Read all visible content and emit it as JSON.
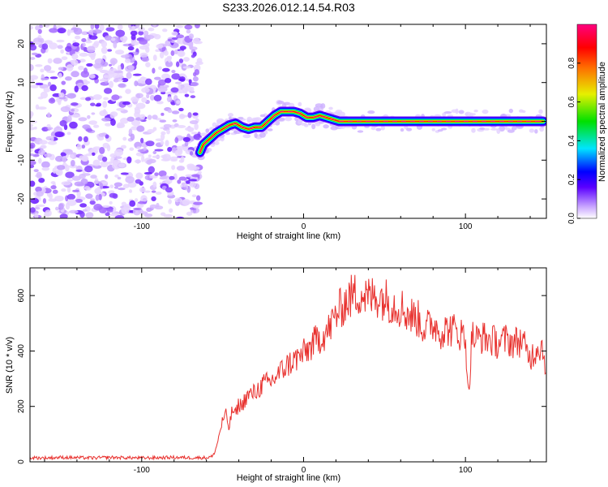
{
  "title": "S233.2026.012.14.54.R03",
  "chart_data": [
    {
      "type": "heatmap",
      "title": "S233.2026.012.14.54.R03",
      "xlabel": "Height of straight line (km)",
      "ylabel": "Frequency (Hz)",
      "xlim": [
        -169,
        150
      ],
      "ylim": [
        -25,
        25
      ],
      "x_ticks": [
        -100,
        0,
        100
      ],
      "y_ticks": [
        -20,
        -10,
        0,
        10,
        20
      ],
      "noise_region_x": [
        -169,
        -64
      ],
      "signal_trace": {
        "x": [
          -64,
          -62,
          -58,
          -54,
          -50,
          -46,
          -42,
          -38,
          -34,
          -30,
          -26,
          -22,
          -18,
          -14,
          -10,
          -6,
          -2,
          2,
          6,
          10,
          14,
          18,
          22,
          30,
          40,
          50,
          60,
          70,
          80,
          90,
          100,
          110,
          120,
          130,
          140,
          148
        ],
        "y": [
          -8,
          -6,
          -4.5,
          -3,
          -2,
          -1,
          -0.5,
          -1.5,
          -2,
          -1.5,
          -1.5,
          0,
          1.5,
          2.5,
          2.5,
          2.5,
          2,
          1,
          1,
          1.5,
          1,
          0.5,
          0,
          0,
          0,
          0,
          0,
          0,
          0,
          0,
          0,
          0,
          0,
          0,
          0,
          0
        ]
      },
      "colorbar": {
        "label": "Normalized spectral amplitude",
        "range": [
          0,
          1
        ],
        "ticks": [
          "0.0",
          "0.2",
          "0.4",
          "0.6",
          "0.8"
        ]
      }
    },
    {
      "type": "line",
      "xlabel": "Height of straight line (km)",
      "ylabel": "SNR (10 * v/v)",
      "xlim": [
        -169,
        150
      ],
      "ylim": [
        0,
        700
      ],
      "x_ticks": [
        -100,
        0,
        100
      ],
      "y_ticks": [
        0,
        200,
        400,
        600
      ],
      "series": [
        {
          "name": "SNR",
          "color": "#e8312e",
          "x": [
            -169,
            -160,
            -150,
            -140,
            -130,
            -120,
            -110,
            -100,
            -90,
            -80,
            -70,
            -60,
            -56,
            -54,
            -52,
            -50,
            -48,
            -46,
            -44,
            -42,
            -40,
            -38,
            -36,
            -34,
            -30,
            -25,
            -20,
            -15,
            -10,
            -5,
            0,
            5,
            10,
            15,
            20,
            25,
            30,
            35,
            40,
            45,
            50,
            55,
            60,
            65,
            70,
            75,
            80,
            85,
            90,
            95,
            100,
            102,
            104,
            106,
            110,
            115,
            120,
            125,
            130,
            135,
            138,
            140,
            142,
            145,
            148,
            150
          ],
          "y": [
            15,
            14,
            16,
            15,
            14,
            16,
            15,
            14,
            15,
            16,
            15,
            15,
            20,
            50,
            100,
            150,
            170,
            120,
            190,
            170,
            210,
            200,
            230,
            240,
            250,
            280,
            290,
            320,
            350,
            370,
            390,
            420,
            450,
            470,
            530,
            570,
            600,
            610,
            590,
            600,
            590,
            570,
            560,
            530,
            520,
            480,
            500,
            470,
            480,
            470,
            450,
            230,
            460,
            440,
            450,
            440,
            430,
            440,
            430,
            440,
            390,
            380,
            390,
            420,
            410,
            330
          ]
        }
      ]
    }
  ]
}
